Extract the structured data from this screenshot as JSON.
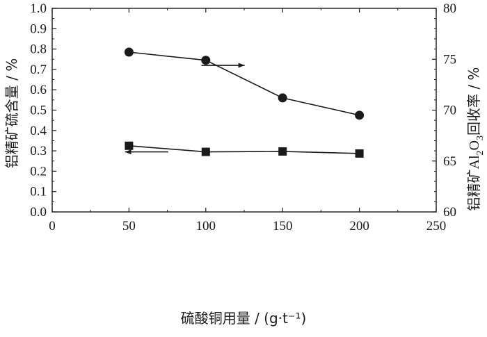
{
  "chart_data": {
    "type": "line",
    "x_axis": {
      "label": "硫酸铜用量 / (g·t⁻¹)",
      "lim": [
        0,
        250
      ],
      "ticks": [
        0,
        50,
        100,
        150,
        200,
        250
      ],
      "tick_labels": [
        "0",
        "50",
        "100",
        "150",
        "200",
        "250"
      ]
    },
    "y_left": {
      "label": "铝精矿硫含量 / %",
      "lim": [
        0.0,
        1.0
      ],
      "ticks": [
        0.0,
        0.1,
        0.2,
        0.3,
        0.4,
        0.5,
        0.6,
        0.7,
        0.8,
        0.9,
        1.0
      ],
      "tick_labels": [
        "0.0",
        "0.1",
        "0.2",
        "0.3",
        "0.4",
        "0.5",
        "0.6",
        "0.7",
        "0.8",
        "0.9",
        "1.0"
      ]
    },
    "y_right": {
      "label_prefix": "铝精矿",
      "label_formula": "Al2O3",
      "label_suffix": "回收率 / %",
      "lim": [
        60,
        80
      ],
      "ticks": [
        60,
        65,
        70,
        75,
        80
      ],
      "tick_labels": [
        "60",
        "65",
        "70",
        "75",
        "80"
      ]
    },
    "x": [
      50,
      100,
      150,
      200
    ],
    "series": [
      {
        "axis": "right",
        "marker": "circle",
        "values": [
          75.7,
          74.9,
          71.2,
          69.5
        ],
        "arrow_direction": "right"
      },
      {
        "axis": "left",
        "marker": "square",
        "values": [
          0.325,
          0.295,
          0.297,
          0.287
        ],
        "arrow_direction": "left"
      }
    ],
    "grid": false,
    "legend": "none"
  },
  "colors": {
    "ink": "#1a1a1a",
    "background": "#ffffff"
  }
}
